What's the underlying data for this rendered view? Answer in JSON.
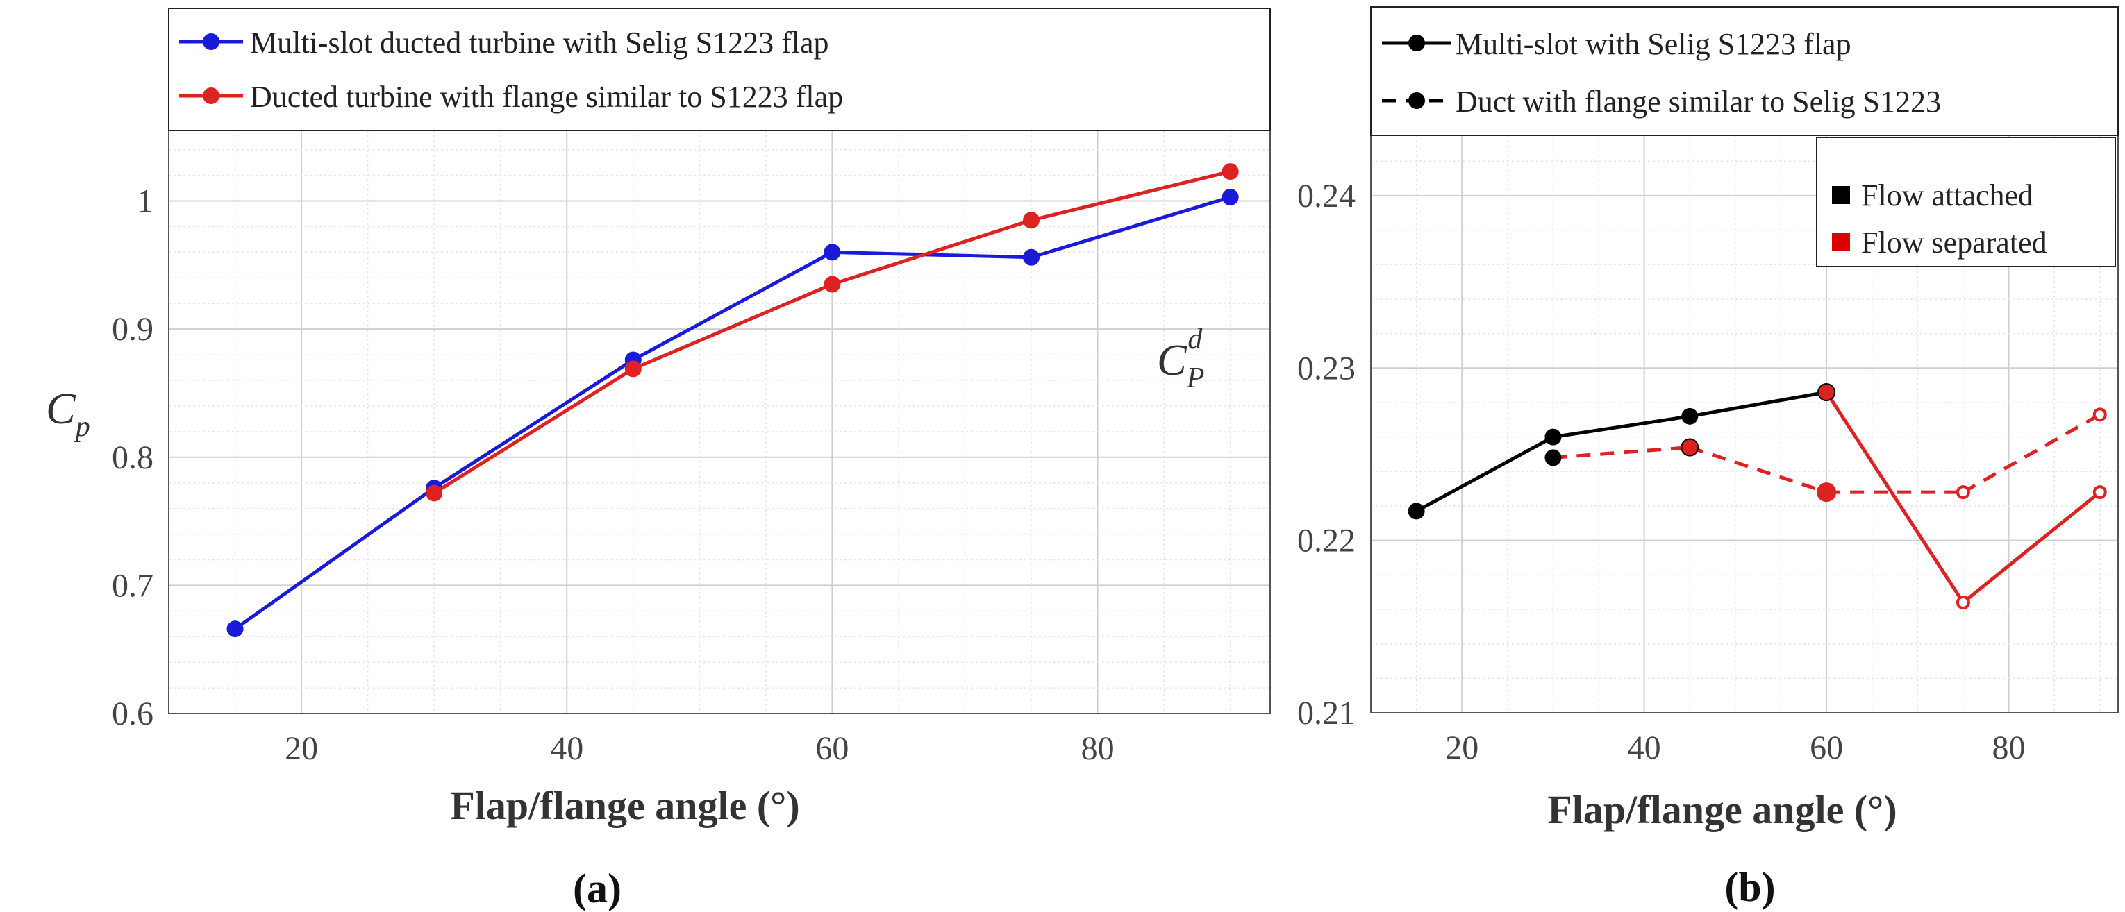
{
  "chart_data": [
    {
      "type": "line",
      "panel_label": "(a)",
      "xlabel": "Flap/flange angle (°)",
      "ylabel_base": "C",
      "ylabel_sub": "p",
      "xlim": [
        10,
        93
      ],
      "ylim": [
        0.6,
        1.055
      ],
      "xticks": [
        20,
        40,
        60,
        80
      ],
      "yticks": [
        0.6,
        0.7,
        0.8,
        0.9,
        1.0
      ],
      "ytick_labels": [
        "0.6",
        "0.7",
        "0.8",
        "0.9",
        "1"
      ],
      "grid": true,
      "legend_position": "top",
      "series": [
        {
          "name": "Multi-slot ducted turbine with Selig S1223 flap",
          "color": "#1a1ad9",
          "x": [
            15,
            30,
            45,
            60,
            75,
            90
          ],
          "y": [
            0.666,
            0.776,
            0.876,
            0.96,
            0.956,
            1.003
          ]
        },
        {
          "name": "Ducted turbine with flange similar to S1223 flap",
          "color": "#dd2222",
          "x": [
            30,
            45,
            60,
            75,
            90
          ],
          "y": [
            0.772,
            0.869,
            0.935,
            0.985,
            1.023
          ]
        }
      ]
    },
    {
      "type": "line",
      "panel_label": "(b)",
      "xlabel": "Flap/flange angle (°)",
      "ylabel_base": "C",
      "ylabel_sub": "P",
      "ylabel_sup": "d",
      "xlim": [
        10,
        92
      ],
      "ylim": [
        0.21,
        0.2435
      ],
      "xticks": [
        20,
        40,
        60,
        80
      ],
      "yticks": [
        0.21,
        0.22,
        0.23,
        0.24
      ],
      "ytick_labels": [
        "0.21",
        "0.22",
        "0.23",
        "0.24"
      ],
      "grid": true,
      "legend_position": "top",
      "state_legend": [
        {
          "label": "Flow attached",
          "color": "#000000"
        },
        {
          "label": "Flow separated",
          "color": "#dd0000"
        }
      ],
      "series": [
        {
          "name": "Multi-slot with Selig S1223 flap",
          "style": "solid",
          "x": [
            15,
            30,
            45,
            60,
            75,
            90
          ],
          "y": [
            0.2217,
            0.226,
            0.2272,
            0.2286,
            0.2164,
            0.2228
          ],
          "state": [
            "attached",
            "attached",
            "attached",
            "attached",
            "separated",
            "separated"
          ]
        },
        {
          "name": "Duct with flange similar to Selig S1223",
          "style": "dashed",
          "x": [
            30,
            45,
            60,
            75,
            90
          ],
          "y": [
            0.2248,
            0.2254,
            0.2228,
            0.2228,
            0.2273
          ],
          "state": [
            "attached",
            "separated",
            "separated",
            "separated",
            "separated"
          ]
        }
      ]
    }
  ]
}
